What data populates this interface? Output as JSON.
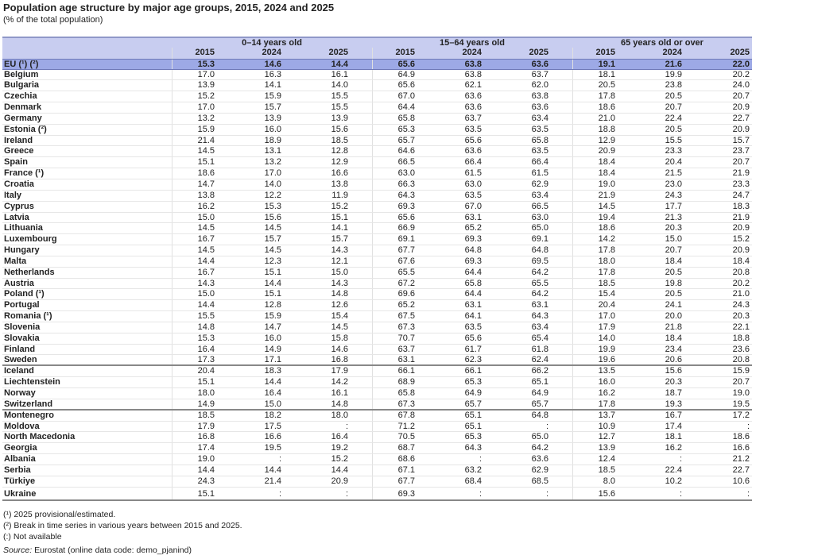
{
  "title": "Population age structure by major age groups, 2015, 2024 and 2025",
  "subtitle": "(% of the total population)",
  "groups": [
    "0–14 years old",
    "15–64 years old",
    "65 years old or over"
  ],
  "years": [
    "2015",
    "2024",
    "2025"
  ],
  "colors": {
    "header_bg": "#c8cdf0",
    "eu_row_bg": "#9da9e6"
  },
  "eu_row": {
    "label": "EU (¹) (²)",
    "values": [
      "15.3",
      "14.6",
      "14.4",
      "65.6",
      "63.8",
      "63.6",
      "19.1",
      "21.6",
      "22.0"
    ]
  },
  "rows": [
    {
      "label": "Belgium",
      "values": [
        "17.0",
        "16.3",
        "16.1",
        "64.9",
        "63.8",
        "63.7",
        "18.1",
        "19.9",
        "20.2"
      ]
    },
    {
      "label": "Bulgaria",
      "values": [
        "13.9",
        "14.1",
        "14.0",
        "65.6",
        "62.1",
        "62.0",
        "20.5",
        "23.8",
        "24.0"
      ]
    },
    {
      "label": "Czechia",
      "values": [
        "15.2",
        "15.9",
        "15.5",
        "67.0",
        "63.6",
        "63.8",
        "17.8",
        "20.5",
        "20.7"
      ]
    },
    {
      "label": "Denmark",
      "values": [
        "17.0",
        "15.7",
        "15.5",
        "64.4",
        "63.6",
        "63.6",
        "18.6",
        "20.7",
        "20.9"
      ]
    },
    {
      "label": "Germany",
      "values": [
        "13.2",
        "13.9",
        "13.9",
        "65.8",
        "63.7",
        "63.4",
        "21.0",
        "22.4",
        "22.7"
      ]
    },
    {
      "label": "Estonia (²)",
      "values": [
        "15.9",
        "16.0",
        "15.6",
        "65.3",
        "63.5",
        "63.5",
        "18.8",
        "20.5",
        "20.9"
      ]
    },
    {
      "label": "Ireland",
      "values": [
        "21.4",
        "18.9",
        "18.5",
        "65.7",
        "65.6",
        "65.8",
        "12.9",
        "15.5",
        "15.7"
      ]
    },
    {
      "label": "Greece",
      "values": [
        "14.5",
        "13.1",
        "12.8",
        "64.6",
        "63.6",
        "63.5",
        "20.9",
        "23.3",
        "23.7"
      ]
    },
    {
      "label": "Spain",
      "values": [
        "15.1",
        "13.2",
        "12.9",
        "66.5",
        "66.4",
        "66.4",
        "18.4",
        "20.4",
        "20.7"
      ]
    },
    {
      "label": "France (¹)",
      "values": [
        "18.6",
        "17.0",
        "16.6",
        "63.0",
        "61.5",
        "61.5",
        "18.4",
        "21.5",
        "21.9"
      ]
    },
    {
      "label": "Croatia",
      "values": [
        "14.7",
        "14.0",
        "13.8",
        "66.3",
        "63.0",
        "62.9",
        "19.0",
        "23.0",
        "23.3"
      ]
    },
    {
      "label": "Italy",
      "values": [
        "13.8",
        "12.2",
        "11.9",
        "64.3",
        "63.5",
        "63.4",
        "21.9",
        "24.3",
        "24.7"
      ]
    },
    {
      "label": "Cyprus",
      "values": [
        "16.2",
        "15.3",
        "15.2",
        "69.3",
        "67.0",
        "66.5",
        "14.5",
        "17.7",
        "18.3"
      ]
    },
    {
      "label": "Latvia",
      "values": [
        "15.0",
        "15.6",
        "15.1",
        "65.6",
        "63.1",
        "63.0",
        "19.4",
        "21.3",
        "21.9"
      ]
    },
    {
      "label": "Lithuania",
      "values": [
        "14.5",
        "14.5",
        "14.1",
        "66.9",
        "65.2",
        "65.0",
        "18.6",
        "20.3",
        "20.9"
      ]
    },
    {
      "label": "Luxembourg",
      "values": [
        "16.7",
        "15.7",
        "15.7",
        "69.1",
        "69.3",
        "69.1",
        "14.2",
        "15.0",
        "15.2"
      ]
    },
    {
      "label": "Hungary",
      "values": [
        "14.5",
        "14.5",
        "14.3",
        "67.7",
        "64.8",
        "64.8",
        "17.8",
        "20.7",
        "20.9"
      ]
    },
    {
      "label": "Malta",
      "values": [
        "14.4",
        "12.3",
        "12.1",
        "67.6",
        "69.3",
        "69.5",
        "18.0",
        "18.4",
        "18.4"
      ]
    },
    {
      "label": "Netherlands",
      "values": [
        "16.7",
        "15.1",
        "15.0",
        "65.5",
        "64.4",
        "64.2",
        "17.8",
        "20.5",
        "20.8"
      ]
    },
    {
      "label": "Austria",
      "values": [
        "14.3",
        "14.4",
        "14.3",
        "67.2",
        "65.8",
        "65.5",
        "18.5",
        "19.8",
        "20.2"
      ]
    },
    {
      "label": "Poland  (¹)",
      "values": [
        "15.0",
        "15.1",
        "14.8",
        "69.6",
        "64.4",
        "64.2",
        "15.4",
        "20.5",
        "21.0"
      ]
    },
    {
      "label": "Portugal",
      "values": [
        "14.4",
        "12.8",
        "12.6",
        "65.2",
        "63.1",
        "63.1",
        "20.4",
        "24.1",
        "24.3"
      ]
    },
    {
      "label": "Romania (¹)",
      "values": [
        "15.5",
        "15.9",
        "15.4",
        "67.5",
        "64.1",
        "64.3",
        "17.0",
        "20.0",
        "20.3"
      ]
    },
    {
      "label": "Slovenia",
      "values": [
        "14.8",
        "14.7",
        "14.5",
        "67.3",
        "63.5",
        "63.4",
        "17.9",
        "21.8",
        "22.1"
      ]
    },
    {
      "label": "Slovakia",
      "values": [
        "15.3",
        "16.0",
        "15.8",
        "70.7",
        "65.6",
        "65.4",
        "14.0",
        "18.4",
        "18.8"
      ]
    },
    {
      "label": "Finland",
      "values": [
        "16.4",
        "14.9",
        "14.6",
        "63.7",
        "61.7",
        "61.8",
        "19.9",
        "23.4",
        "23.6"
      ]
    },
    {
      "label": "Sweden",
      "values": [
        "17.3",
        "17.1",
        "16.8",
        "63.1",
        "62.3",
        "62.4",
        "19.6",
        "20.6",
        "20.8"
      ],
      "sep": true
    },
    {
      "label": "Iceland",
      "values": [
        "20.4",
        "18.3",
        "17.9",
        "66.1",
        "66.1",
        "66.2",
        "13.5",
        "15.6",
        "15.9"
      ]
    },
    {
      "label": "Liechtenstein",
      "values": [
        "15.1",
        "14.4",
        "14.2",
        "68.9",
        "65.3",
        "65.1",
        "16.0",
        "20.3",
        "20.7"
      ]
    },
    {
      "label": "Norway",
      "values": [
        "18.0",
        "16.4",
        "16.1",
        "65.8",
        "64.9",
        "64.9",
        "16.2",
        "18.7",
        "19.0"
      ]
    },
    {
      "label": "Switzerland",
      "values": [
        "14.9",
        "15.0",
        "14.8",
        "67.3",
        "65.7",
        "65.7",
        "17.8",
        "19.3",
        "19.5"
      ],
      "sep": true
    },
    {
      "label": "Montenegro",
      "values": [
        "18.5",
        "18.2",
        "18.0",
        "67.8",
        "65.1",
        "64.8",
        "13.7",
        "16.7",
        "17.2"
      ]
    },
    {
      "label": "Moldova",
      "values": [
        "17.9",
        "17.5",
        ":",
        "71.2",
        "65.1",
        ":",
        "10.9",
        "17.4",
        ":"
      ]
    },
    {
      "label": "North Macedonia",
      "values": [
        "16.8",
        "16.6",
        "16.4",
        "70.5",
        "65.3",
        "65.0",
        "12.7",
        "18.1",
        "18.6"
      ]
    },
    {
      "label": "Georgia",
      "values": [
        "17.4",
        "19.5",
        "19.2",
        "68.7",
        "64.3",
        "64.2",
        "13.9",
        "16.2",
        "16.6"
      ]
    },
    {
      "label": "Albania",
      "values": [
        "19.0",
        ":",
        "15.2",
        "68.6",
        ":",
        "63.6",
        "12.4",
        ":",
        "21.2"
      ]
    },
    {
      "label": "Serbia",
      "values": [
        "14.4",
        "14.4",
        "14.4",
        "67.1",
        "63.2",
        "62.9",
        "18.5",
        "22.4",
        "22.7"
      ]
    },
    {
      "label": "Türkiye",
      "values": [
        "24.3",
        "21.4",
        "20.9",
        "67.7",
        "68.4",
        "68.5",
        "8.0",
        "10.2",
        "10.6"
      ]
    },
    {
      "label": "Ukraine",
      "values": [
        "15.1",
        ":",
        ":",
        "69.3",
        ":",
        ":",
        "15.6",
        ":",
        ":"
      ],
      "tall": true
    }
  ],
  "notes": {
    "n1": "(¹) 2025 provisional/estimated.",
    "n2": "(²) Break in time series in various years between 2015 and 2025.",
    "n3": "(:) Not available",
    "source_label": "Source:",
    "source_text": " Eurostat (online data code: demo_pjanind)"
  }
}
